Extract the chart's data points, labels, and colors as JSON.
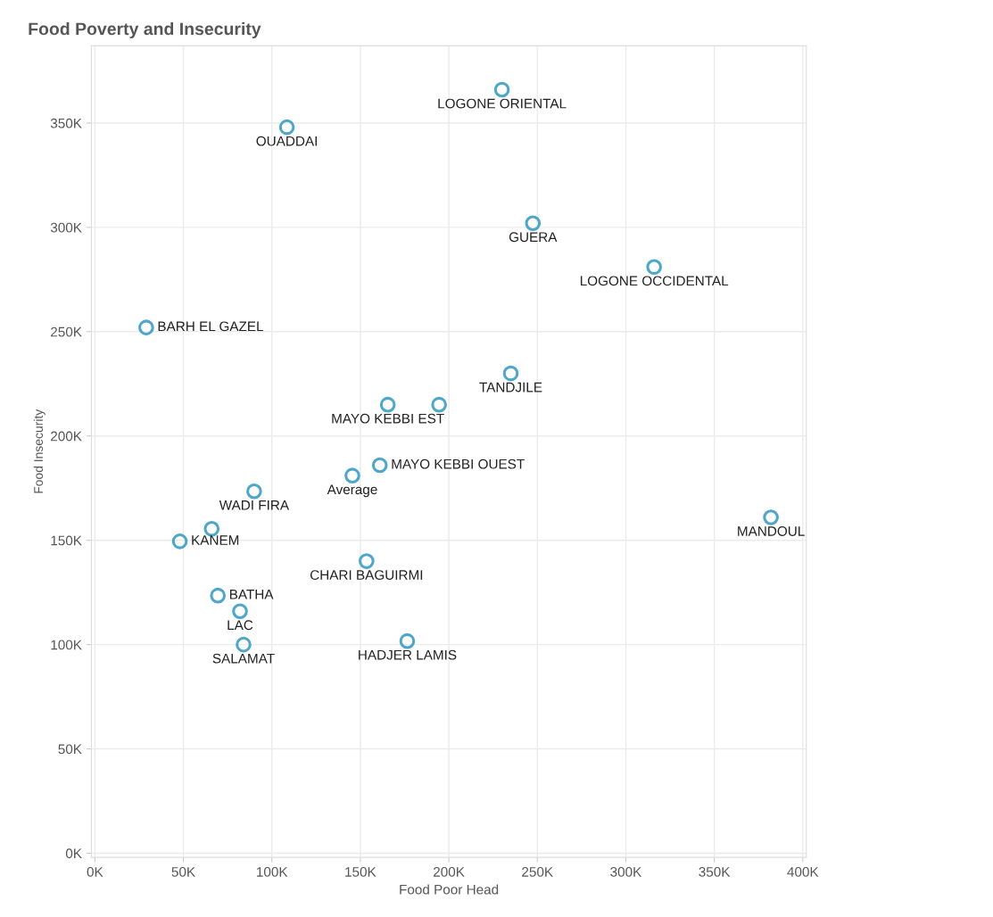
{
  "chart_data": {
    "type": "scatter",
    "title": "Food Poverty and Insecurity",
    "xlabel": "Food Poor Head",
    "ylabel": "Food Insecurity",
    "series": [
      {
        "color": "#4ea6c9",
        "x": [
          230000,
          108500,
          247500,
          316000,
          29000,
          235000,
          165500,
          194500,
          161000,
          145500,
          90000,
          66000,
          48000,
          382000,
          153500,
          69500,
          82000,
          84000,
          176500
        ],
        "values": [
          366000,
          348000,
          302000,
          281000,
          252000,
          230000,
          215000,
          215000,
          186000,
          181000,
          173500,
          155500,
          149500,
          161000,
          140000,
          123500,
          116000,
          100000,
          101700
        ]
      }
    ],
    "annotations": [
      {
        "text": "LOGONE ORIENTAL",
        "x": 230000,
        "y": 366000
      },
      {
        "text": "OUADDAI",
        "x": 108500,
        "y": 348000
      },
      {
        "text": "GUERA",
        "x": 247500,
        "y": 302000
      },
      {
        "text": "LOGONE OCCIDENTAL",
        "x": 316000,
        "y": 281000
      },
      {
        "text": "BARH EL GAZEL",
        "x": 29000,
        "y": 252000
      },
      {
        "text": "TANDJILE",
        "x": 235000,
        "y": 230000
      },
      {
        "text": "MAYO KEBBI EST",
        "x": 165500,
        "y": 215000
      },
      {
        "text": "MAYO KEBBI OUEST",
        "x": 161000,
        "y": 186000
      },
      {
        "text": "Average",
        "x": 145500,
        "y": 181000
      },
      {
        "text": "WADI FIRA",
        "x": 90000,
        "y": 173500
      },
      {
        "text": "KANEM",
        "x": 48000,
        "y": 149500
      },
      {
        "text": "MANDOUL",
        "x": 382000,
        "y": 161000
      },
      {
        "text": "CHARI BAGUIRMI",
        "x": 153500,
        "y": 140000
      },
      {
        "text": "BATHA",
        "x": 69500,
        "y": 123500
      },
      {
        "text": "LAC",
        "x": 82000,
        "y": 116000
      },
      {
        "text": "SALAMAT",
        "x": 84000,
        "y": 100000
      },
      {
        "text": "HADJER LAMIS",
        "x": 176500,
        "y": 101700
      }
    ],
    "xlim": [
      -2000,
      402000
    ],
    "ylim": [
      -2000,
      387000
    ],
    "xticks": [
      {
        "value": 0,
        "label": "0K"
      },
      {
        "value": 50000,
        "label": "50K"
      },
      {
        "value": 100000,
        "label": "100K"
      },
      {
        "value": 150000,
        "label": "150K"
      },
      {
        "value": 200000,
        "label": "200K"
      },
      {
        "value": 250000,
        "label": "250K"
      },
      {
        "value": 300000,
        "label": "300K"
      },
      {
        "value": 350000,
        "label": "350K"
      },
      {
        "value": 400000,
        "label": "400K"
      }
    ],
    "yticks": [
      {
        "value": 0,
        "label": "0K"
      },
      {
        "value": 50000,
        "label": "50K"
      },
      {
        "value": 100000,
        "label": "100K"
      },
      {
        "value": 150000,
        "label": "150K"
      },
      {
        "value": 200000,
        "label": "200K"
      },
      {
        "value": 250000,
        "label": "250K"
      },
      {
        "value": 300000,
        "label": "300K"
      },
      {
        "value": 350000,
        "label": "350K"
      }
    ],
    "grid": true,
    "marker": "circle"
  }
}
